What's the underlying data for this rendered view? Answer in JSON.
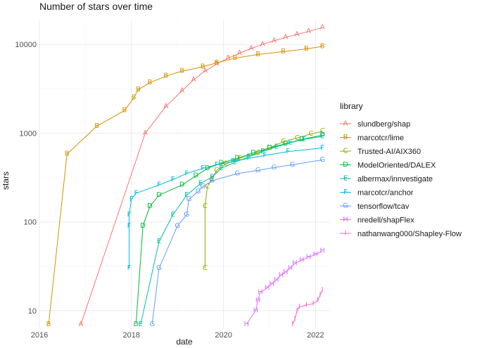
{
  "chart_data": {
    "type": "line",
    "title": "Number of stars over time",
    "xlabel": "date",
    "ylabel": "stars",
    "y_scale": "log10",
    "xlim": [
      2016.0,
      2022.3
    ],
    "ylim": [
      6.2,
      19000
    ],
    "x_ticks": [
      {
        "value": 2016,
        "label": "2016"
      },
      {
        "value": 2018,
        "label": "2018"
      },
      {
        "value": 2020,
        "label": "2020"
      },
      {
        "value": 2022,
        "label": "2022"
      }
    ],
    "y_ticks": [
      {
        "value": 10,
        "label": "10"
      },
      {
        "value": 100,
        "label": "100"
      },
      {
        "value": 1000,
        "label": "1000"
      },
      {
        "value": 10000,
        "label": "10000"
      }
    ],
    "grid": true,
    "legend": {
      "title": "library",
      "position": "right"
    },
    "series": [
      {
        "name": "slundberg/shap",
        "shape": "A",
        "color": "#F8766D",
        "points": [
          [
            2016.9,
            7
          ],
          [
            2018.3,
            1000
          ],
          [
            2018.75,
            2000
          ],
          [
            2019.1,
            3000
          ],
          [
            2019.35,
            4000
          ],
          [
            2019.6,
            5000
          ],
          [
            2019.85,
            6000
          ],
          [
            2020.1,
            7000
          ],
          [
            2020.35,
            8000
          ],
          [
            2020.6,
            9000
          ],
          [
            2020.85,
            10000
          ],
          [
            2021.1,
            11000
          ],
          [
            2021.35,
            12000
          ],
          [
            2021.6,
            13000
          ],
          [
            2021.85,
            14000
          ],
          [
            2022.15,
            15500
          ]
        ]
      },
      {
        "name": "marcotcr/lime",
        "shape": "B",
        "color": "#D39200",
        "points": [
          [
            2016.2,
            7
          ],
          [
            2016.6,
            580
          ],
          [
            2017.25,
            1200
          ],
          [
            2017.85,
            1800
          ],
          [
            2018.05,
            2500
          ],
          [
            2018.15,
            3100
          ],
          [
            2018.4,
            3700
          ],
          [
            2018.75,
            4400
          ],
          [
            2019.1,
            5000
          ],
          [
            2019.55,
            5600
          ],
          [
            2019.85,
            6200
          ],
          [
            2020.25,
            7000
          ],
          [
            2020.75,
            7700
          ],
          [
            2021.3,
            8300
          ],
          [
            2021.8,
            8900
          ],
          [
            2022.15,
            9500
          ]
        ]
      },
      {
        "name": "Trusted-AI/AIX360",
        "shape": "C",
        "color": "#93AA00",
        "points": [
          [
            2019.6,
            30
          ],
          [
            2019.6,
            150
          ],
          [
            2019.65,
            250
          ],
          [
            2019.75,
            300
          ],
          [
            2019.85,
            380
          ],
          [
            2020.05,
            450
          ],
          [
            2020.35,
            520
          ],
          [
            2020.75,
            600
          ],
          [
            2021.0,
            680
          ],
          [
            2021.3,
            800
          ],
          [
            2021.6,
            880
          ],
          [
            2021.9,
            980
          ],
          [
            2022.15,
            1050
          ]
        ]
      },
      {
        "name": "ModelOriented/DALEX",
        "shape": "D",
        "color": "#00BA38",
        "points": [
          [
            2018.1,
            7
          ],
          [
            2018.25,
            90
          ],
          [
            2018.4,
            150
          ],
          [
            2018.6,
            200
          ],
          [
            2019.1,
            260
          ],
          [
            2019.4,
            330
          ],
          [
            2019.65,
            400
          ],
          [
            2019.95,
            460
          ],
          [
            2020.3,
            520
          ],
          [
            2020.65,
            600
          ],
          [
            2021.0,
            680
          ],
          [
            2021.35,
            760
          ],
          [
            2021.7,
            850
          ],
          [
            2022.15,
            950
          ]
        ]
      },
      {
        "name": "albermax/innvestigate",
        "shape": "E",
        "color": "#00C19F",
        "points": [
          [
            2018.2,
            7
          ],
          [
            2018.6,
            60
          ],
          [
            2018.9,
            120
          ],
          [
            2019.2,
            200
          ],
          [
            2019.5,
            270
          ],
          [
            2019.75,
            320
          ],
          [
            2019.95,
            400
          ],
          [
            2020.25,
            470
          ],
          [
            2020.55,
            540
          ],
          [
            2020.85,
            620
          ],
          [
            2021.15,
            700
          ],
          [
            2021.45,
            780
          ],
          [
            2021.75,
            850
          ],
          [
            2022.15,
            920
          ]
        ]
      },
      {
        "name": "marcotcr/anchor",
        "shape": "F",
        "color": "#00B9E3",
        "points": [
          [
            2017.95,
            30
          ],
          [
            2017.95,
            90
          ],
          [
            2017.95,
            120
          ],
          [
            2018.0,
            180
          ],
          [
            2018.1,
            210
          ],
          [
            2018.6,
            260
          ],
          [
            2018.9,
            300
          ],
          [
            2019.2,
            350
          ],
          [
            2019.55,
            400
          ],
          [
            2019.85,
            440
          ],
          [
            2020.2,
            480
          ],
          [
            2020.55,
            520
          ],
          [
            2020.9,
            560
          ],
          [
            2021.4,
            620
          ],
          [
            2022.15,
            680
          ]
        ]
      },
      {
        "name": "tensorflow/tcav",
        "shape": "G",
        "color": "#619CFF",
        "points": [
          [
            2018.45,
            7
          ],
          [
            2018.6,
            30
          ],
          [
            2019.0,
            90
          ],
          [
            2019.2,
            120
          ],
          [
            2019.25,
            180
          ],
          [
            2019.45,
            220
          ],
          [
            2019.55,
            250
          ],
          [
            2019.75,
            290
          ],
          [
            2020.3,
            350
          ],
          [
            2020.75,
            380
          ],
          [
            2021.1,
            410
          ],
          [
            2021.5,
            440
          ],
          [
            2022.15,
            500
          ]
        ]
      },
      {
        "name": "nredell/shapFlex",
        "shape": "H",
        "color": "#DB72FB",
        "points": [
          [
            2020.5,
            7
          ],
          [
            2020.7,
            10
          ],
          [
            2020.75,
            13
          ],
          [
            2020.8,
            16
          ],
          [
            2020.95,
            18
          ],
          [
            2021.05,
            20
          ],
          [
            2021.15,
            22
          ],
          [
            2021.25,
            25
          ],
          [
            2021.35,
            27
          ],
          [
            2021.45,
            30
          ],
          [
            2021.55,
            34
          ],
          [
            2021.7,
            37
          ],
          [
            2021.85,
            40
          ],
          [
            2022.0,
            43
          ],
          [
            2022.15,
            47
          ]
        ]
      },
      {
        "name": "nathanwang000/Shapley-Flow",
        "shape": "I",
        "color": "#FF61C3",
        "points": [
          [
            2021.5,
            7
          ],
          [
            2021.55,
            8
          ],
          [
            2021.6,
            10
          ],
          [
            2021.65,
            11
          ],
          [
            2021.8,
            11.5
          ],
          [
            2021.95,
            12
          ],
          [
            2022.05,
            13
          ],
          [
            2022.1,
            15
          ],
          [
            2022.15,
            17
          ]
        ]
      }
    ]
  }
}
